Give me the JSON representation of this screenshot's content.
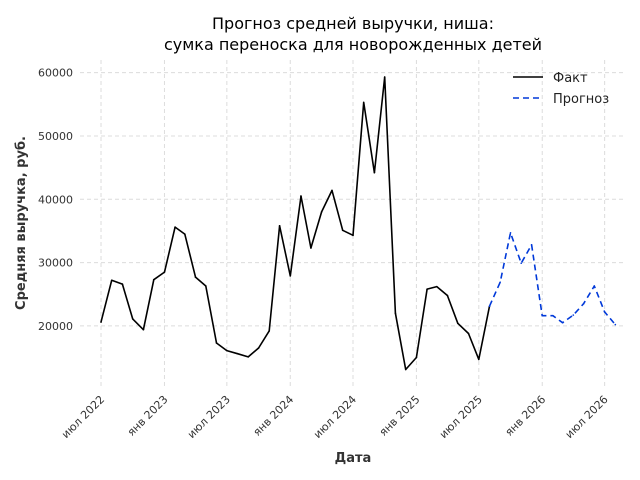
{
  "chart_data": {
    "type": "line",
    "title_lines": [
      "Прогноз средней выручки, ниша:",
      "сумка переноска для новорожденных детей"
    ],
    "xlabel": "Дата",
    "ylabel": "Средняя выручка, руб.",
    "ylim": [
      10500,
      62000
    ],
    "yticks": [
      20000,
      30000,
      40000,
      50000,
      60000
    ],
    "xtick_labels": [
      "июл 2022",
      "янв 2023",
      "июл 2023",
      "янв 2024",
      "июл 2024",
      "янв 2025",
      "июл 2025",
      "янв 2026",
      "июл 2026"
    ],
    "xtick_dates": [
      "2022-07-01",
      "2023-01-01",
      "2023-07-01",
      "2024-01-01",
      "2024-07-01",
      "2025-01-01",
      "2025-07-01",
      "2026-01-01",
      "2026-07-01"
    ],
    "xlim": [
      "2022-05-01",
      "2026-09-01"
    ],
    "grid": true,
    "legend_position": "top-right",
    "series": [
      {
        "name": "Факт",
        "color": "#000000",
        "style": "solid",
        "points": [
          {
            "x": "2022-07-01",
            "y": 20600
          },
          {
            "x": "2022-08-01",
            "y": 27200
          },
          {
            "x": "2022-09-01",
            "y": 26600
          },
          {
            "x": "2022-10-01",
            "y": 21100
          },
          {
            "x": "2022-11-01",
            "y": 19400
          },
          {
            "x": "2022-12-01",
            "y": 27300
          },
          {
            "x": "2023-01-01",
            "y": 28500
          },
          {
            "x": "2023-02-01",
            "y": 35600
          },
          {
            "x": "2023-03-01",
            "y": 34500
          },
          {
            "x": "2023-04-01",
            "y": 27700
          },
          {
            "x": "2023-05-01",
            "y": 26300
          },
          {
            "x": "2023-06-01",
            "y": 17300
          },
          {
            "x": "2023-07-01",
            "y": 16100
          },
          {
            "x": "2023-08-01",
            "y": 15600
          },
          {
            "x": "2023-09-01",
            "y": 15100
          },
          {
            "x": "2023-10-01",
            "y": 16500
          },
          {
            "x": "2023-11-01",
            "y": 19200
          },
          {
            "x": "2023-12-01",
            "y": 35800
          },
          {
            "x": "2024-01-01",
            "y": 27900
          },
          {
            "x": "2024-02-01",
            "y": 40500
          },
          {
            "x": "2024-03-01",
            "y": 32300
          },
          {
            "x": "2024-04-01",
            "y": 38000
          },
          {
            "x": "2024-05-01",
            "y": 41400
          },
          {
            "x": "2024-06-01",
            "y": 35100
          },
          {
            "x": "2024-07-01",
            "y": 34300
          },
          {
            "x": "2024-08-01",
            "y": 55300
          },
          {
            "x": "2024-09-01",
            "y": 44200
          },
          {
            "x": "2024-10-01",
            "y": 59300
          },
          {
            "x": "2024-11-01",
            "y": 22000
          },
          {
            "x": "2024-12-01",
            "y": 13100
          },
          {
            "x": "2025-01-01",
            "y": 15000
          },
          {
            "x": "2025-02-01",
            "y": 25800
          },
          {
            "x": "2025-03-01",
            "y": 26200
          },
          {
            "x": "2025-04-01",
            "y": 24800
          },
          {
            "x": "2025-05-01",
            "y": 20400
          },
          {
            "x": "2025-06-01",
            "y": 18800
          },
          {
            "x": "2025-07-01",
            "y": 14700
          },
          {
            "x": "2025-08-01",
            "y": 23100
          }
        ]
      },
      {
        "name": "Прогноз",
        "color": "#0039d9",
        "style": "dashed",
        "points": [
          {
            "x": "2025-08-01",
            "y": 23100
          },
          {
            "x": "2025-09-01",
            "y": 26900
          },
          {
            "x": "2025-10-01",
            "y": 34700
          },
          {
            "x": "2025-11-01",
            "y": 29900
          },
          {
            "x": "2025-12-01",
            "y": 32800
          },
          {
            "x": "2026-01-01",
            "y": 21600
          },
          {
            "x": "2026-02-01",
            "y": 21600
          },
          {
            "x": "2026-03-01",
            "y": 20500
          },
          {
            "x": "2026-04-01",
            "y": 21700
          },
          {
            "x": "2026-05-01",
            "y": 23500
          },
          {
            "x": "2026-06-01",
            "y": 26300
          },
          {
            "x": "2026-07-01",
            "y": 22200
          },
          {
            "x": "2026-08-01",
            "y": 20200
          }
        ]
      }
    ]
  }
}
